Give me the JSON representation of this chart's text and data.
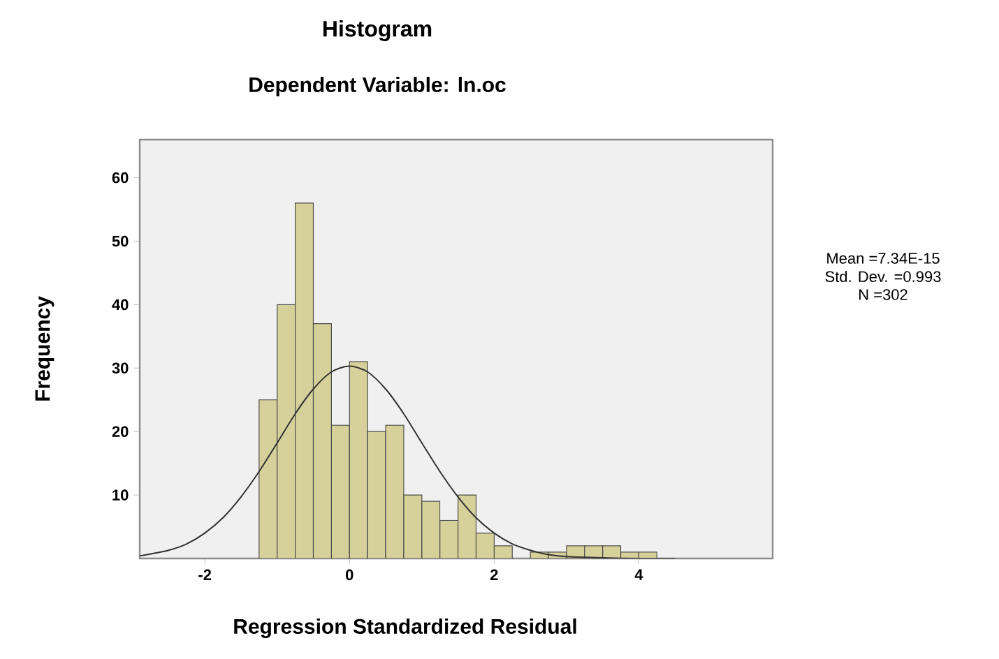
{
  "chart_data": {
    "type": "histogram",
    "title": "Histogram",
    "subtitle": "Dependent Variable: ln.oc",
    "xlabel": "Regression Standardized Residual",
    "ylabel": "Frequency",
    "annotations": [
      "Mean =7.34E-15",
      "Std. Dev. =0.993",
      "N =302"
    ],
    "bins": [
      -1.25,
      -1.0,
      -0.75,
      -0.5,
      -0.25,
      0.0,
      0.25,
      0.5,
      0.75,
      1.0,
      1.25,
      1.5,
      1.75,
      2.0,
      2.25,
      2.5,
      2.75,
      3.0,
      3.25,
      3.5,
      3.75,
      4.0,
      4.25
    ],
    "values": [
      25,
      40,
      56,
      37,
      21,
      31,
      20,
      21,
      10,
      9,
      6,
      10,
      4,
      2,
      0,
      1,
      1,
      2,
      2,
      2,
      1,
      1
    ],
    "color": "#d6d09a",
    "series": [
      {
        "type": "line",
        "color": "#333333",
        "x": [
          -2.9,
          -2.5,
          -2.25,
          -2.0,
          -1.75,
          -1.5,
          -1.25,
          -1.0,
          -0.75,
          -0.5,
          -0.25,
          0.0,
          0.25,
          0.5,
          0.75,
          1.0,
          1.25,
          1.5,
          1.75,
          2.0,
          2.25,
          2.5,
          2.75,
          3.0,
          3.5,
          4.0,
          4.5
        ],
        "values": [
          0.4,
          1.3,
          2.3,
          4.0,
          6.4,
          9.7,
          13.7,
          18.2,
          22.8,
          26.7,
          29.4,
          30.3,
          29.4,
          26.7,
          22.8,
          18.2,
          13.7,
          9.7,
          6.4,
          4.0,
          2.3,
          1.3,
          0.6,
          0.3,
          0.1,
          0.0,
          0.0
        ]
      }
    ],
    "xlim": [
      -2.9,
      5.85
    ],
    "ylim": [
      0,
      66
    ],
    "xticks": [
      -2,
      0,
      2,
      4
    ],
    "yticks": [
      10,
      20,
      30,
      40,
      50,
      60
    ]
  }
}
